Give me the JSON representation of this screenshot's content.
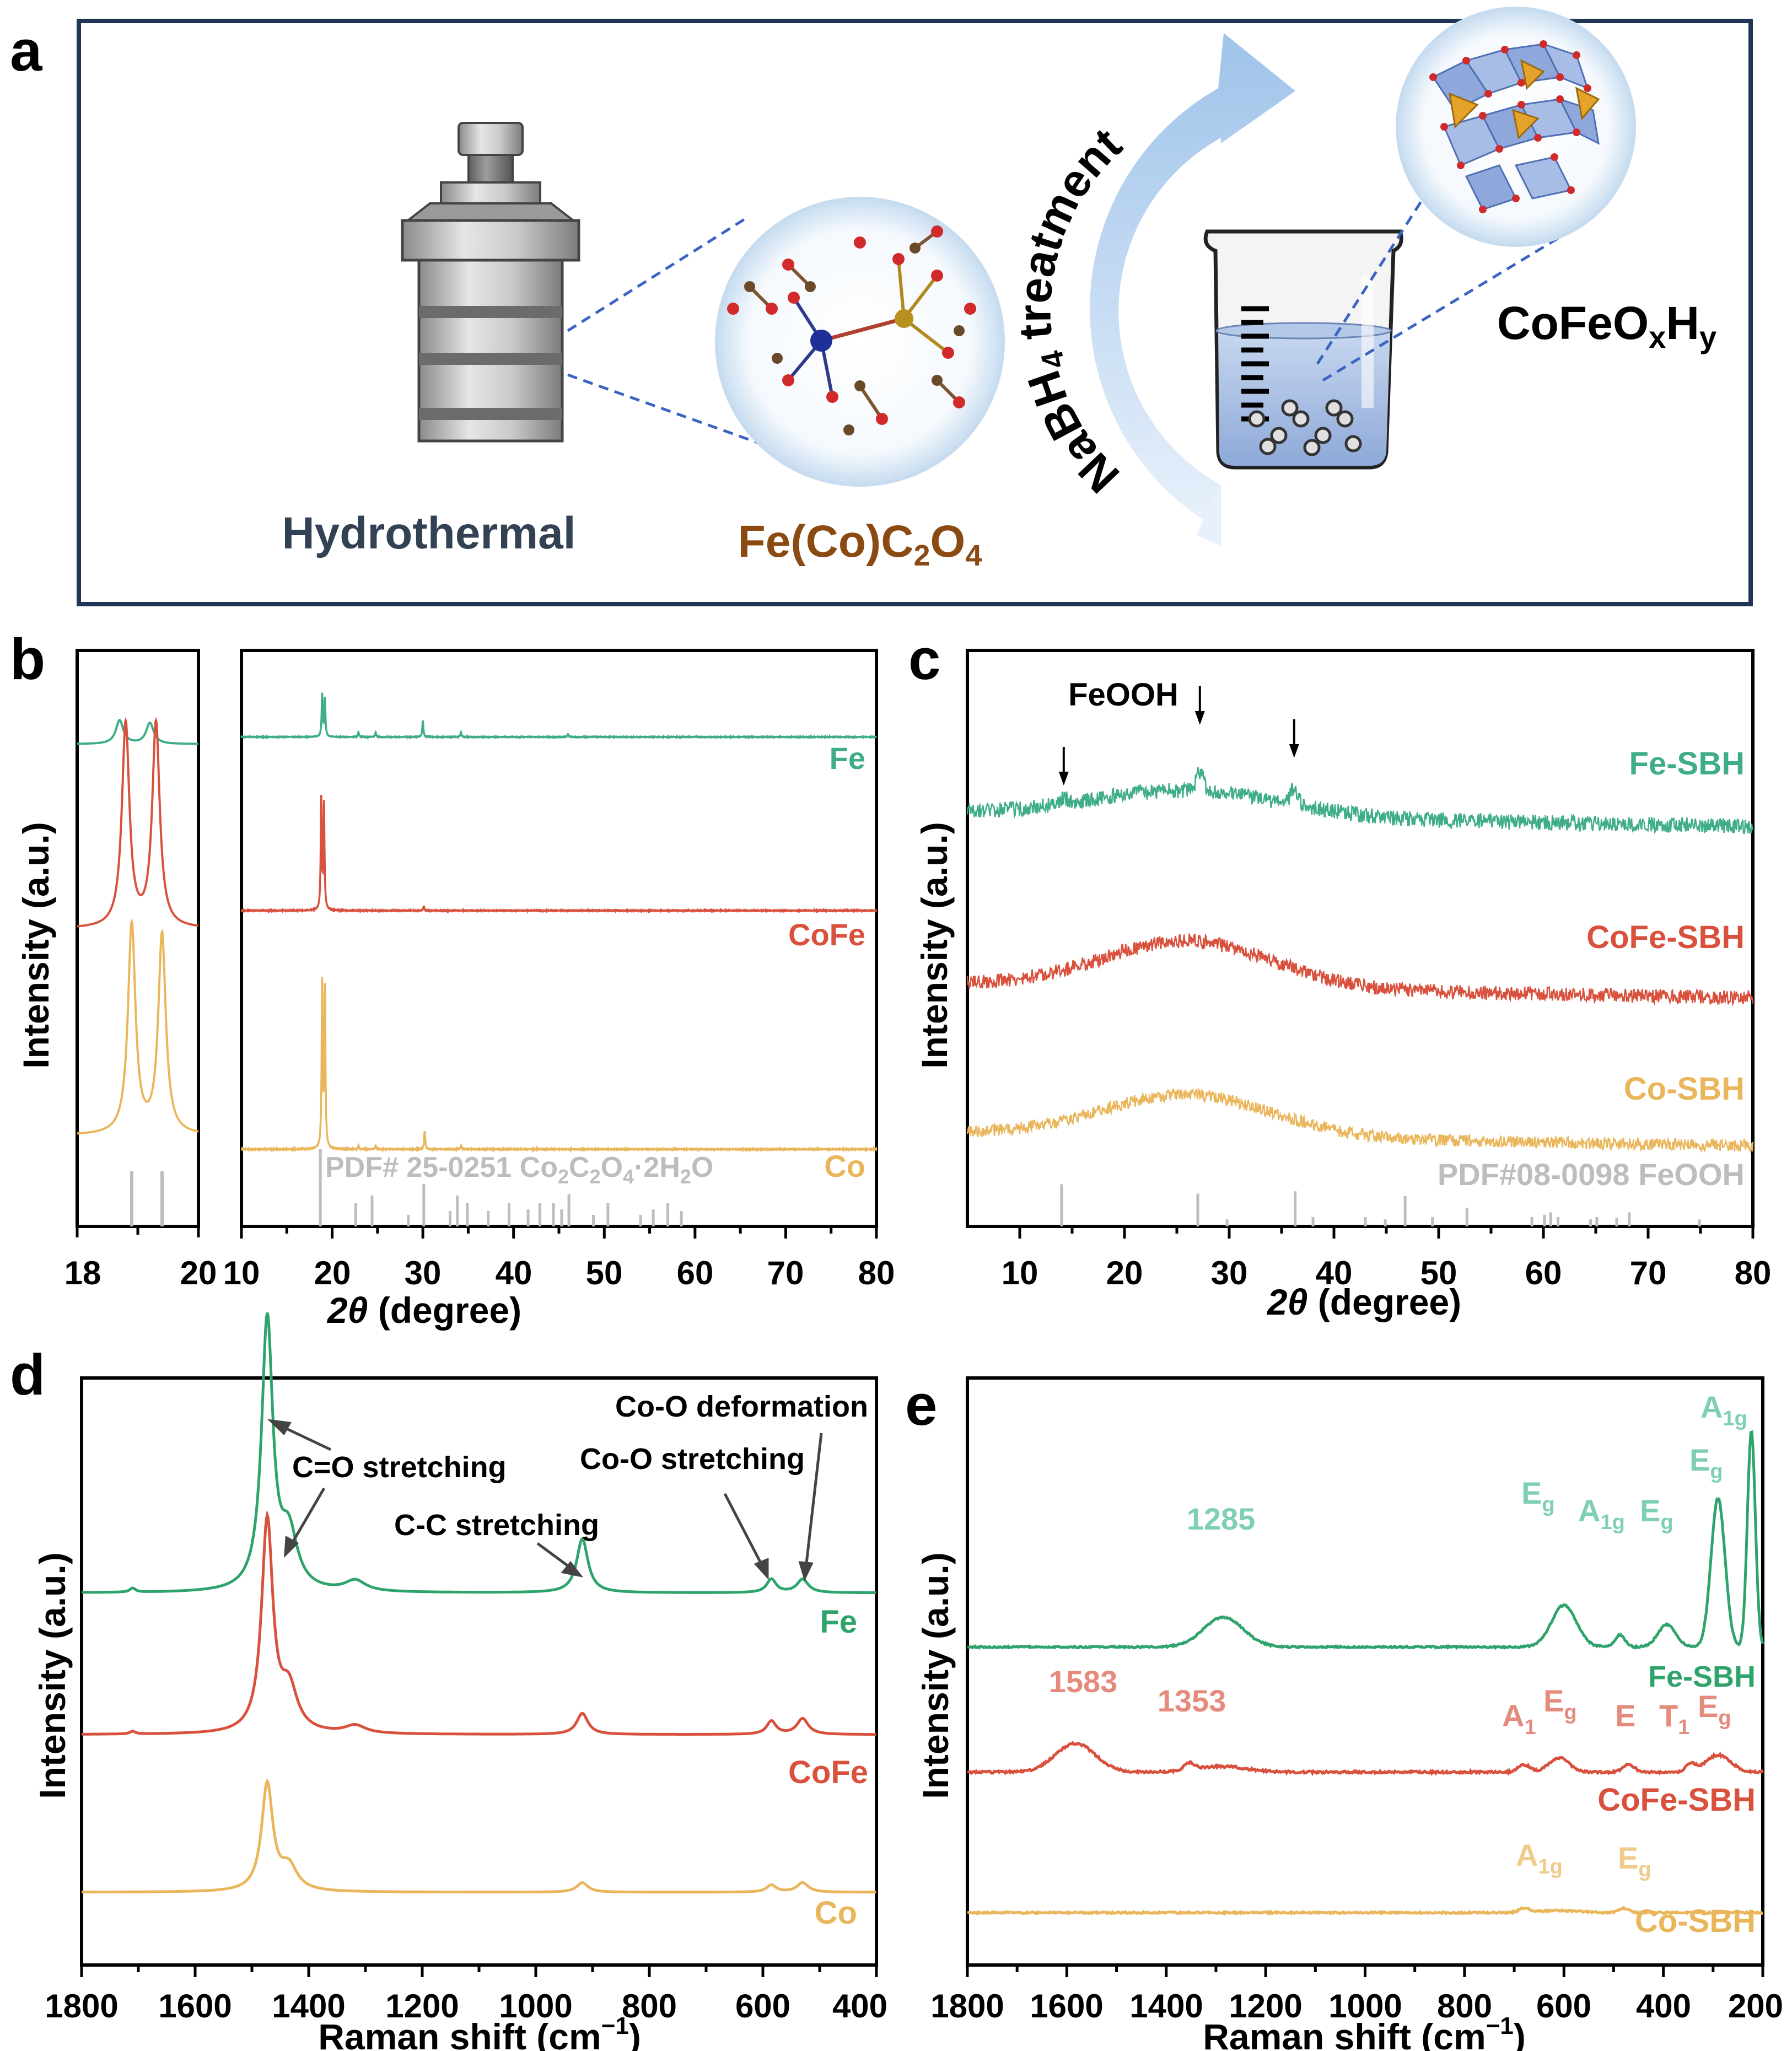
{
  "colors": {
    "fe": "#3fae86",
    "fe_raman": "#2ea36b",
    "cofe": "#d9503d",
    "co": "#eab65c",
    "ref": "#bdbdbd",
    "panel_border": "#1e3556",
    "hydro_text": "#334155",
    "oxalate_text": "#8a4a12",
    "arrow_fill": "#a9c9ec",
    "axis": "#000000"
  },
  "panel_a": {
    "letter": "a",
    "hydrothermal_label": "Hydrothermal",
    "oxalate_label": {
      "main": "Fe(Co)C",
      "sub1": "2",
      "mid": "O",
      "sub2": "4"
    },
    "treatment_label": {
      "pre": "NaBH",
      "sub": "4",
      "post": " treatment"
    },
    "product_label": {
      "main": "CoFeO",
      "sub1": "x",
      "mid": "H",
      "sub2": "y"
    }
  },
  "panel_b": {
    "letter": "b",
    "ylabel": "Intensity (a.u.)",
    "xlabel_var": "2θ",
    "xlabel_unit": " (degree)",
    "inset_ticks": [
      "18",
      "20"
    ],
    "main_ticks": [
      "10",
      "20",
      "30",
      "40",
      "50",
      "60",
      "70",
      "80"
    ],
    "ref_label": {
      "pre": "PDF# 25-0251 Co",
      "s1": "2",
      "m1": "C",
      "s2": "2",
      "m2": "O",
      "s3": "4",
      "post": "·2H",
      "s4": "2",
      "end": "O"
    }
  },
  "panel_c": {
    "letter": "c",
    "ylabel": "Intensity (a.u.)",
    "xlabel_var": "2θ",
    "xlabel_unit": " (degree)",
    "annotation": "FeOOH",
    "ref_label": "PDF#08-0098 FeOOH",
    "ticks": [
      "10",
      "20",
      "30",
      "40",
      "50",
      "60",
      "70",
      "80"
    ]
  },
  "panel_d": {
    "letter": "d",
    "ylabel": "Intensity (a.u.)",
    "xlabel_pre": "Raman shift (cm",
    "xlabel_sup": "−1",
    "xlabel_post": ")",
    "ticks": [
      "1800",
      "1600",
      "1400",
      "1200",
      "1000",
      "800",
      "600",
      "400"
    ],
    "annotations": {
      "co_def": "Co-O deformation",
      "co_str": "Co-O stretching",
      "co_stretch": "C=O stretching",
      "cc_stretch": "C-C stretching"
    }
  },
  "panel_e": {
    "letter": "e",
    "ylabel": "Intensity (a.u.)",
    "xlabel_pre": "Raman shift (cm",
    "xlabel_sup": "−1",
    "xlabel_post": ")",
    "ticks": [
      "1800",
      "1600",
      "1400",
      "1200",
      "1000",
      "800",
      "600",
      "400",
      "200"
    ],
    "fe_modes": {
      "p1285": "1285",
      "eg": "E",
      "eg_sub": "g",
      "a1g": "A",
      "a1g_sub": "1g"
    },
    "cofe_modes": {
      "p1583": "1583",
      "p1353": "1353",
      "a1": "A",
      "a1_sub": "1",
      "eg": "E",
      "eg_sub": "g",
      "e": "E",
      "t1": "T",
      "t1_sub": "1"
    },
    "co_modes": {
      "a1g": "A",
      "a1g_sub": "1g",
      "eg": "E",
      "eg_sub": "g"
    }
  },
  "chart_data": [
    {
      "id": "b-inset",
      "type": "line",
      "xlabel": "",
      "ylabel": "Intensity (a.u.)",
      "xlim": [
        18,
        20
      ],
      "series": [
        {
          "name": "Fe",
          "peaks": [
            {
              "x": 18.7,
              "height": 0.45
            },
            {
              "x": 19.2,
              "height": 0.4
            }
          ]
        },
        {
          "name": "CoFe",
          "peaks": [
            {
              "x": 18.8,
              "height": 1.0
            },
            {
              "x": 19.3,
              "height": 1.0
            }
          ]
        },
        {
          "name": "Co",
          "peaks": [
            {
              "x": 18.9,
              "height": 1.0
            },
            {
              "x": 19.4,
              "height": 0.95
            }
          ]
        }
      ],
      "reference_sticks": [
        18.9,
        19.4
      ]
    },
    {
      "id": "b-main",
      "type": "line",
      "xlabel": "2θ (degree)",
      "ylabel": "Intensity (a.u.)",
      "xlim": [
        10,
        80
      ],
      "series": [
        {
          "name": "Fe",
          "label": "Fe",
          "peaks": [
            {
              "x": 18.9,
              "height": 0.9
            },
            {
              "x": 19.2,
              "height": 0.8
            },
            {
              "x": 22.9,
              "height": 0.1
            },
            {
              "x": 24.8,
              "height": 0.1
            },
            {
              "x": 30.0,
              "height": 0.35
            },
            {
              "x": 34.2,
              "height": 0.1
            },
            {
              "x": 46.0,
              "height": 0.06
            }
          ]
        },
        {
          "name": "CoFe",
          "label": "CoFe",
          "peaks": [
            {
              "x": 18.8,
              "height": 2.0
            },
            {
              "x": 19.1,
              "height": 1.9
            },
            {
              "x": 30.1,
              "height": 0.08
            }
          ]
        },
        {
          "name": "Co",
          "label": "Co",
          "peaks": [
            {
              "x": 18.9,
              "height": 2.7
            },
            {
              "x": 19.2,
              "height": 2.6
            },
            {
              "x": 22.9,
              "height": 0.06
            },
            {
              "x": 24.8,
              "height": 0.06
            },
            {
              "x": 30.2,
              "height": 0.3
            },
            {
              "x": 34.2,
              "height": 0.06
            }
          ]
        }
      ],
      "reference_sticks": [
        {
          "x": 18.7,
          "h": 1.0
        },
        {
          "x": 22.6,
          "h": 0.3
        },
        {
          "x": 24.4,
          "h": 0.4
        },
        {
          "x": 28.4,
          "h": 0.15
        },
        {
          "x": 30.1,
          "h": 0.55
        },
        {
          "x": 33.0,
          "h": 0.2
        },
        {
          "x": 33.8,
          "h": 0.4
        },
        {
          "x": 34.9,
          "h": 0.3
        },
        {
          "x": 37.2,
          "h": 0.2
        },
        {
          "x": 39.5,
          "h": 0.3
        },
        {
          "x": 41.6,
          "h": 0.22
        },
        {
          "x": 42.9,
          "h": 0.3
        },
        {
          "x": 44.4,
          "h": 0.3
        },
        {
          "x": 45.3,
          "h": 0.22
        },
        {
          "x": 46.1,
          "h": 0.42
        },
        {
          "x": 48.8,
          "h": 0.15
        },
        {
          "x": 50.4,
          "h": 0.3
        },
        {
          "x": 54.0,
          "h": 0.15
        },
        {
          "x": 55.4,
          "h": 0.22
        },
        {
          "x": 57.0,
          "h": 0.3
        },
        {
          "x": 58.5,
          "h": 0.2
        }
      ]
    },
    {
      "id": "c",
      "type": "line",
      "xlabel": "2θ (degree)",
      "ylabel": "Intensity (a.u.)",
      "xlim": [
        5,
        80
      ],
      "series": [
        {
          "name": "Fe-SBH",
          "label": "Fe-SBH",
          "broad_hump": {
            "x": 26,
            "width": 9,
            "height": 0.5
          },
          "peaks": [
            {
              "x": 14.2,
              "height": 0.12
            },
            {
              "x": 27.2,
              "height": 0.35
            },
            {
              "x": 36.2,
              "height": 0.3
            }
          ]
        },
        {
          "name": "CoFe-SBH",
          "label": "CoFe-SBH",
          "broad_hump": {
            "x": 26,
            "width": 8,
            "height": 0.85
          }
        },
        {
          "name": "Co-SBH",
          "label": "Co-SBH",
          "broad_hump": {
            "x": 26,
            "width": 8,
            "height": 0.8
          }
        }
      ],
      "annotated_peaks": [
        14.2,
        27.2,
        36.2
      ],
      "reference_sticks": [
        {
          "x": 14.0,
          "h": 0.9
        },
        {
          "x": 27.0,
          "h": 0.7
        },
        {
          "x": 29.8,
          "h": 0.15
        },
        {
          "x": 36.3,
          "h": 0.75
        },
        {
          "x": 38.0,
          "h": 0.2
        },
        {
          "x": 43.0,
          "h": 0.2
        },
        {
          "x": 44.9,
          "h": 0.15
        },
        {
          "x": 46.8,
          "h": 0.65
        },
        {
          "x": 49.4,
          "h": 0.2
        },
        {
          "x": 52.7,
          "h": 0.4
        },
        {
          "x": 58.9,
          "h": 0.2
        },
        {
          "x": 60.1,
          "h": 0.25
        },
        {
          "x": 60.7,
          "h": 0.3
        },
        {
          "x": 61.4,
          "h": 0.2
        },
        {
          "x": 64.5,
          "h": 0.15
        },
        {
          "x": 65.1,
          "h": 0.2
        },
        {
          "x": 67.0,
          "h": 0.18
        },
        {
          "x": 68.2,
          "h": 0.3
        },
        {
          "x": 74.9,
          "h": 0.15
        }
      ]
    },
    {
      "id": "d",
      "type": "line",
      "xlabel": "Raman shift (cm−1)",
      "ylabel": "Intensity (a.u.)",
      "xlim": [
        1800,
        400
      ],
      "x_reversed": true,
      "series": [
        {
          "name": "Fe",
          "label": "Fe",
          "peaks": [
            {
              "x": 1710,
              "width": 6,
              "height": 0.015
            },
            {
              "x": 1473,
              "width": 12,
              "height": 1.0
            },
            {
              "x": 1435,
              "width": 18,
              "height": 0.2
            },
            {
              "x": 1318,
              "width": 22,
              "height": 0.04
            },
            {
              "x": 918,
              "width": 12,
              "height": 0.2
            },
            {
              "x": 585,
              "width": 10,
              "height": 0.05
            },
            {
              "x": 530,
              "width": 12,
              "height": 0.05
            }
          ]
        },
        {
          "name": "CoFe",
          "label": "CoFe",
          "peaks": [
            {
              "x": 1710,
              "width": 6,
              "height": 0.01
            },
            {
              "x": 1473,
              "width": 12,
              "height": 0.8
            },
            {
              "x": 1435,
              "width": 18,
              "height": 0.16
            },
            {
              "x": 1318,
              "width": 22,
              "height": 0.03
            },
            {
              "x": 918,
              "width": 12,
              "height": 0.08
            },
            {
              "x": 585,
              "width": 10,
              "height": 0.05
            },
            {
              "x": 530,
              "width": 12,
              "height": 0.06
            }
          ]
        },
        {
          "name": "Co",
          "label": "Co",
          "peaks": [
            {
              "x": 1473,
              "width": 12,
              "height": 0.45
            },
            {
              "x": 1435,
              "width": 18,
              "height": 0.1
            },
            {
              "x": 918,
              "width": 12,
              "height": 0.04
            },
            {
              "x": 585,
              "width": 10,
              "height": 0.03
            },
            {
              "x": 530,
              "width": 12,
              "height": 0.04
            }
          ]
        }
      ]
    },
    {
      "id": "e",
      "type": "line",
      "xlabel": "Raman shift (cm−1)",
      "ylabel": "Intensity (a.u.)",
      "xlim": [
        1800,
        200
      ],
      "x_reversed": true,
      "series": [
        {
          "name": "Fe-SBH",
          "label": "Fe-SBH",
          "peaks": [
            {
              "x": 1285,
              "width": 40,
              "height": 0.2
            },
            {
              "x": 600,
              "width": 25,
              "height": 0.28
            },
            {
              "x": 487,
              "width": 10,
              "height": 0.08
            },
            {
              "x": 393,
              "width": 18,
              "height": 0.15
            },
            {
              "x": 290,
              "width": 14,
              "height": 1.0
            },
            {
              "x": 223,
              "width": 8,
              "height": 1.45
            }
          ]
        },
        {
          "name": "CoFe-SBH",
          "label": "CoFe-SBH",
          "peaks": [
            {
              "x": 1583,
              "width": 40,
              "height": 0.2
            },
            {
              "x": 1353,
              "width": 10,
              "height": 0.05
            },
            {
              "x": 1290,
              "width": 50,
              "height": 0.04
            },
            {
              "x": 680,
              "width": 12,
              "height": 0.05
            },
            {
              "x": 610,
              "width": 20,
              "height": 0.1
            },
            {
              "x": 470,
              "width": 12,
              "height": 0.05
            },
            {
              "x": 345,
              "width": 10,
              "height": 0.05
            },
            {
              "x": 290,
              "width": 25,
              "height": 0.12
            }
          ]
        },
        {
          "name": "Co-SBH",
          "label": "Co-SBH",
          "peaks": [
            {
              "x": 680,
              "width": 10,
              "height": 0.03
            },
            {
              "x": 610,
              "width": 40,
              "height": 0.015
            },
            {
              "x": 480,
              "width": 10,
              "height": 0.03
            }
          ]
        }
      ]
    }
  ]
}
